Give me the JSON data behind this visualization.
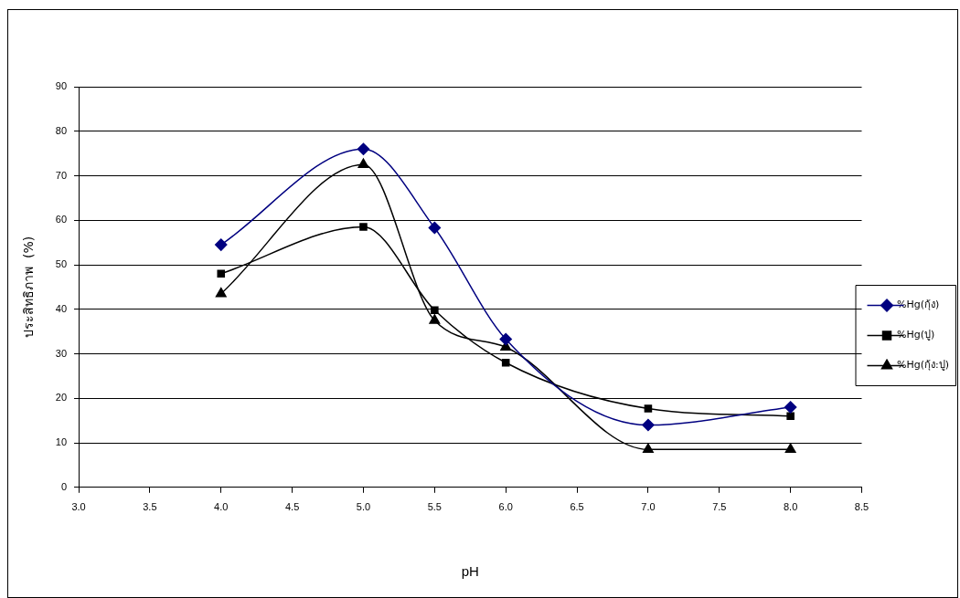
{
  "chart_data": {
    "type": "line",
    "xlabel": "pH",
    "ylabel": "ประสิทธิภาพ  (%)",
    "x": [
      4.0,
      5.0,
      5.5,
      6.0,
      7.0,
      8.0
    ],
    "series": [
      {
        "name": "%Hg(กุ้ง)",
        "color": "#000080",
        "marker": "diamond",
        "values": [
          54.5,
          76,
          58.3,
          33.3,
          14,
          18
        ]
      },
      {
        "name": "%Hg(ปู)",
        "color": "#000000",
        "marker": "square",
        "values": [
          48,
          58.5,
          39.8,
          28,
          17.7,
          16
        ]
      },
      {
        "name": "%Hg(กุ้ง:ปู)",
        "color": "#000000",
        "marker": "triangle",
        "values": [
          43.5,
          72.5,
          37.5,
          31.5,
          8.5,
          8.5
        ]
      }
    ],
    "xlim": [
      3.0,
      8.5
    ],
    "xticks": [
      {
        "value": 3.0,
        "label": "3.0"
      },
      {
        "value": 3.5,
        "label": "3.5"
      },
      {
        "value": 4.0,
        "label": "4.0"
      },
      {
        "value": 4.5,
        "label": "4.5"
      },
      {
        "value": 5.0,
        "label": "5.0"
      },
      {
        "value": 5.5,
        "label": "5.5"
      },
      {
        "value": 6.0,
        "label": "6.0"
      },
      {
        "value": 6.5,
        "label": "6.5"
      },
      {
        "value": 7.0,
        "label": "7.0"
      },
      {
        "value": 7.5,
        "label": "7.5"
      },
      {
        "value": 8.0,
        "label": "8.0"
      },
      {
        "value": 8.5,
        "label": "8.5"
      }
    ],
    "ylim": [
      0,
      90
    ],
    "yticks": [
      0,
      10,
      20,
      30,
      40,
      50,
      60,
      70,
      80,
      90
    ],
    "grid": "y",
    "legend": "right",
    "line_style": "solid"
  }
}
